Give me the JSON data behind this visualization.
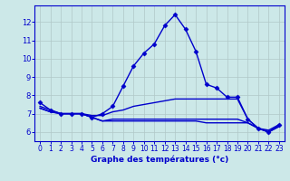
{
  "title": "Graphe des températures (°c)",
  "background_color": "#cce8e8",
  "grid_color": "#b0c8c8",
  "line_color": "#0000cc",
  "xlim": [
    -0.5,
    23.5
  ],
  "ylim": [
    5.5,
    12.9
  ],
  "yticks": [
    6,
    7,
    8,
    9,
    10,
    11,
    12
  ],
  "xticks": [
    0,
    1,
    2,
    3,
    4,
    5,
    6,
    7,
    8,
    9,
    10,
    11,
    12,
    13,
    14,
    15,
    16,
    17,
    18,
    19,
    20,
    21,
    22,
    23
  ],
  "series": [
    {
      "x": [
        0,
        1,
        2,
        3,
        4,
        5,
        6,
        7,
        8,
        9,
        10,
        11,
        12,
        13,
        14,
        15,
        16,
        17,
        18,
        19,
        20,
        21,
        22,
        23
      ],
      "y": [
        7.6,
        7.2,
        7.0,
        7.0,
        7.0,
        6.8,
        7.0,
        7.4,
        8.5,
        9.6,
        10.3,
        10.8,
        11.8,
        12.4,
        11.6,
        10.4,
        8.6,
        8.4,
        7.9,
        7.9,
        6.7,
        6.2,
        6.0,
        6.4
      ],
      "marker": "D",
      "markersize": 2.5
    },
    {
      "x": [
        0,
        1,
        2,
        3,
        4,
        5,
        6,
        7,
        8,
        9,
        10,
        11,
        12,
        13,
        14,
        15,
        16,
        17,
        18,
        19,
        20,
        21,
        22,
        23
      ],
      "y": [
        7.4,
        7.2,
        7.0,
        7.0,
        7.0,
        6.9,
        6.9,
        7.1,
        7.2,
        7.4,
        7.5,
        7.6,
        7.7,
        7.8,
        7.8,
        7.8,
        7.8,
        7.8,
        7.8,
        7.8,
        6.7,
        6.2,
        6.1,
        6.4
      ],
      "marker": null,
      "markersize": 0
    },
    {
      "x": [
        0,
        1,
        2,
        3,
        4,
        5,
        6,
        7,
        8,
        9,
        10,
        11,
        12,
        13,
        14,
        15,
        16,
        17,
        18,
        19,
        20,
        21,
        22,
        23
      ],
      "y": [
        7.3,
        7.1,
        7.0,
        7.0,
        7.0,
        6.8,
        6.6,
        6.7,
        6.7,
        6.7,
        6.7,
        6.7,
        6.7,
        6.7,
        6.7,
        6.7,
        6.7,
        6.7,
        6.7,
        6.7,
        6.5,
        6.2,
        6.0,
        6.3
      ],
      "marker": null,
      "markersize": 0
    },
    {
      "x": [
        0,
        1,
        2,
        3,
        4,
        5,
        6,
        7,
        8,
        9,
        10,
        11,
        12,
        13,
        14,
        15,
        16,
        17,
        18,
        19,
        20,
        21,
        22,
        23
      ],
      "y": [
        7.3,
        7.1,
        7.0,
        7.0,
        7.0,
        6.8,
        6.6,
        6.6,
        6.6,
        6.6,
        6.6,
        6.6,
        6.6,
        6.6,
        6.6,
        6.6,
        6.5,
        6.5,
        6.5,
        6.5,
        6.5,
        6.2,
        6.0,
        6.3
      ],
      "marker": null,
      "markersize": 0
    }
  ],
  "figsize": [
    3.2,
    2.0
  ],
  "dpi": 100
}
